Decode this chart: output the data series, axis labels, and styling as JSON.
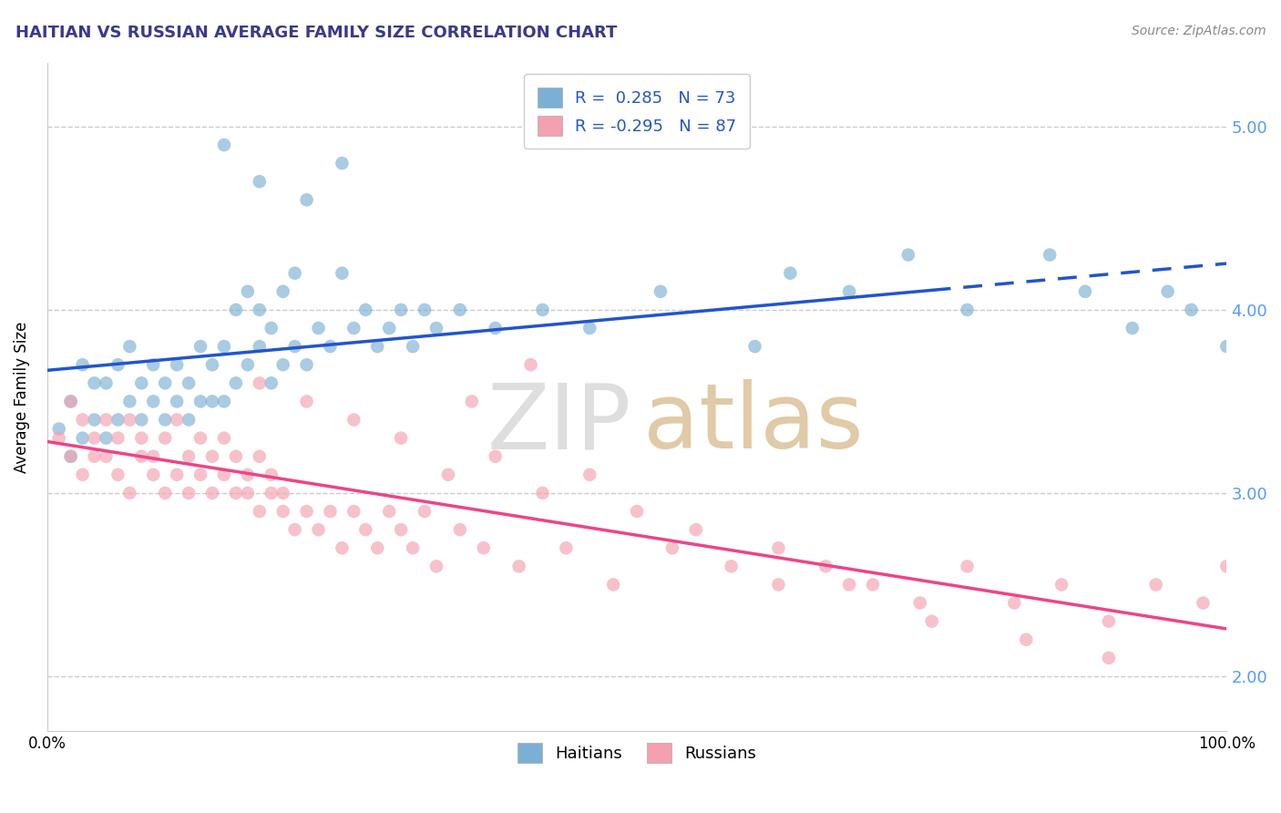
{
  "title": "HAITIAN VS RUSSIAN AVERAGE FAMILY SIZE CORRELATION CHART",
  "source_text": "Source: ZipAtlas.com",
  "ylabel": "Average Family Size",
  "xmin": 0.0,
  "xmax": 100.0,
  "ymin": 1.7,
  "ymax": 5.35,
  "yticks": [
    2.0,
    3.0,
    4.0,
    5.0
  ],
  "title_color": "#3a3a8c",
  "title_fontsize": 13,
  "legend_R_haiti": "0.285",
  "legend_N_haiti": "73",
  "legend_R_russia": "-0.295",
  "legend_N_russia": "87",
  "haiti_color": "#7bafd4",
  "russia_color": "#f4a0b0",
  "haiti_line_color": "#2255cc",
  "russia_line_color": "#ee4488",
  "right_tick_color": "#5599ff",
  "haiti_x": [
    1,
    2,
    2,
    3,
    3,
    4,
    4,
    5,
    5,
    6,
    6,
    7,
    7,
    8,
    8,
    9,
    9,
    10,
    10,
    11,
    11,
    12,
    12,
    13,
    13,
    14,
    14,
    15,
    15,
    16,
    16,
    17,
    17,
    18,
    18,
    19,
    19,
    20,
    20,
    21,
    21,
    22,
    23,
    24,
    25,
    26,
    27,
    28,
    29,
    30,
    31,
    32,
    33,
    35,
    38,
    42,
    46,
    52,
    60,
    63,
    68,
    73,
    78,
    85,
    88,
    92,
    95,
    97,
    100,
    15,
    18,
    22,
    25
  ],
  "haiti_y": [
    3.35,
    3.2,
    3.5,
    3.3,
    3.7,
    3.4,
    3.6,
    3.3,
    3.6,
    3.4,
    3.7,
    3.5,
    3.8,
    3.4,
    3.6,
    3.5,
    3.7,
    3.4,
    3.6,
    3.5,
    3.7,
    3.4,
    3.6,
    3.5,
    3.8,
    3.5,
    3.7,
    3.5,
    3.8,
    3.6,
    4.0,
    3.7,
    4.1,
    3.8,
    4.0,
    3.6,
    3.9,
    3.7,
    4.1,
    3.8,
    4.2,
    3.7,
    3.9,
    3.8,
    4.2,
    3.9,
    4.0,
    3.8,
    3.9,
    4.0,
    3.8,
    4.0,
    3.9,
    4.0,
    3.9,
    4.0,
    3.9,
    4.1,
    3.8,
    4.2,
    4.1,
    4.3,
    4.0,
    4.3,
    4.1,
    3.9,
    4.1,
    4.0,
    3.8,
    4.9,
    4.7,
    4.6,
    4.8
  ],
  "russia_x": [
    1,
    2,
    2,
    3,
    3,
    4,
    4,
    5,
    5,
    6,
    6,
    7,
    7,
    8,
    8,
    9,
    9,
    10,
    10,
    11,
    11,
    12,
    12,
    13,
    13,
    14,
    14,
    15,
    15,
    16,
    16,
    17,
    17,
    18,
    18,
    19,
    19,
    20,
    20,
    21,
    22,
    23,
    24,
    25,
    26,
    27,
    28,
    29,
    30,
    31,
    32,
    33,
    35,
    37,
    40,
    44,
    48,
    53,
    58,
    62,
    66,
    70,
    74,
    78,
    82,
    86,
    90,
    94,
    98,
    100,
    36,
    41,
    18,
    22,
    26,
    30,
    34,
    38,
    42,
    46,
    50,
    55,
    62,
    68,
    75,
    83,
    90
  ],
  "russia_y": [
    3.3,
    3.5,
    3.2,
    3.4,
    3.1,
    3.3,
    3.2,
    3.4,
    3.2,
    3.3,
    3.1,
    3.4,
    3.0,
    3.2,
    3.3,
    3.1,
    3.2,
    3.3,
    3.0,
    3.1,
    3.4,
    3.0,
    3.2,
    3.1,
    3.3,
    3.0,
    3.2,
    3.1,
    3.3,
    3.0,
    3.2,
    3.1,
    3.0,
    3.2,
    2.9,
    3.0,
    3.1,
    2.9,
    3.0,
    2.8,
    2.9,
    2.8,
    2.9,
    2.7,
    2.9,
    2.8,
    2.7,
    2.9,
    2.8,
    2.7,
    2.9,
    2.6,
    2.8,
    2.7,
    2.6,
    2.7,
    2.5,
    2.7,
    2.6,
    2.5,
    2.6,
    2.5,
    2.4,
    2.6,
    2.4,
    2.5,
    2.3,
    2.5,
    2.4,
    2.6,
    3.5,
    3.7,
    3.6,
    3.5,
    3.4,
    3.3,
    3.1,
    3.2,
    3.0,
    3.1,
    2.9,
    2.8,
    2.7,
    2.5,
    2.3,
    2.2,
    2.1
  ],
  "grid_color": "#cccccc",
  "grid_linestyle": "--",
  "bg_color": "#ffffff"
}
